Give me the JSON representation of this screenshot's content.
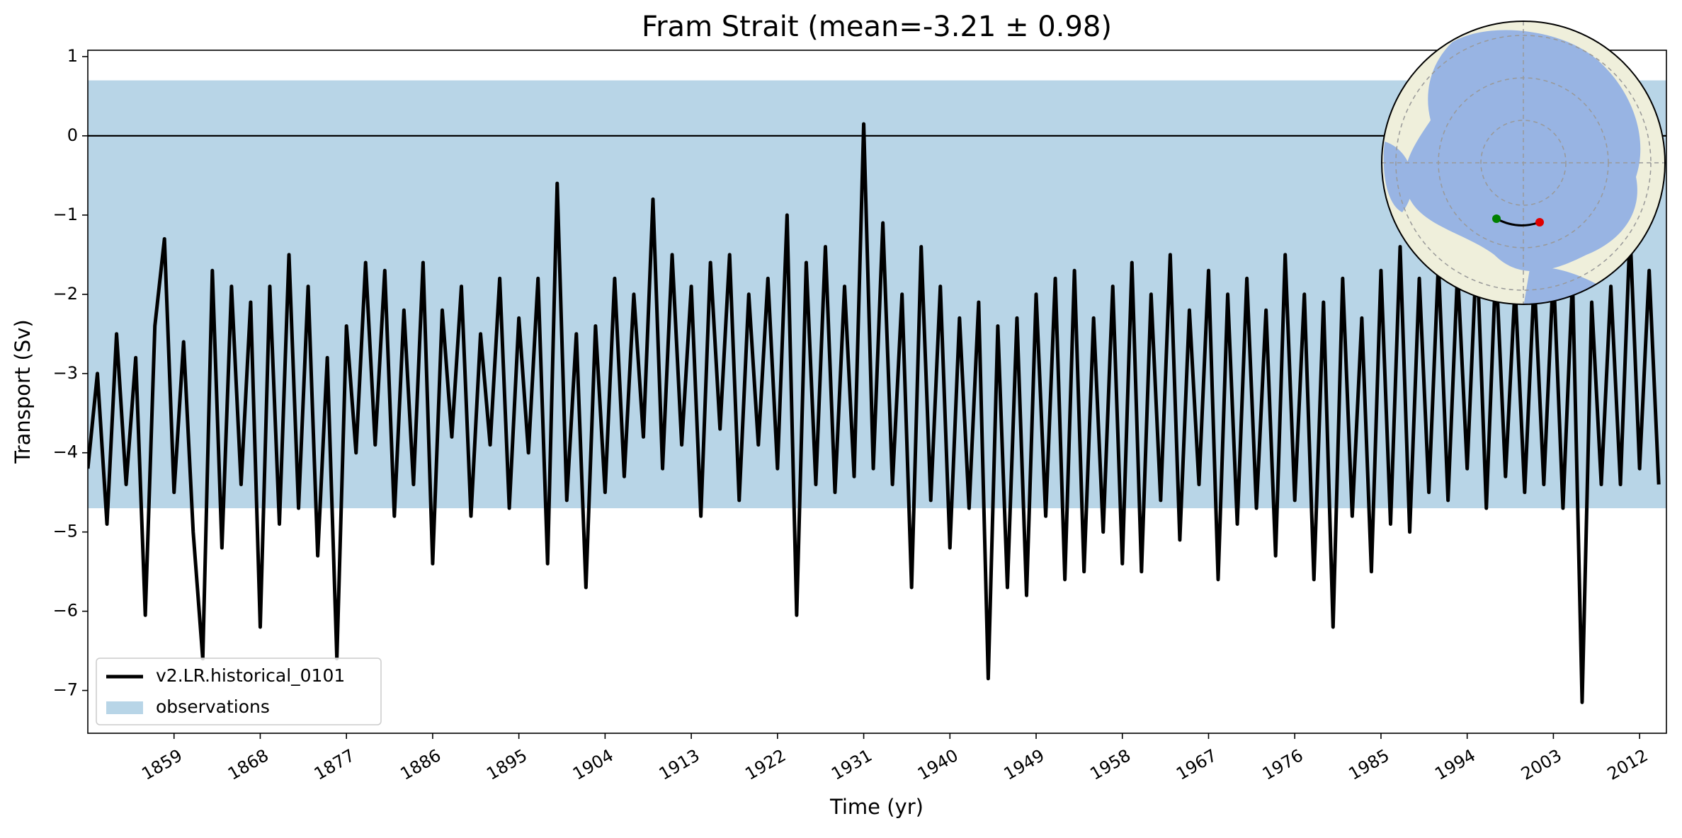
{
  "chart_data": {
    "type": "line",
    "title": "Fram Strait (mean=-3.21 ± 0.98)",
    "xlabel": "Time (yr)",
    "ylabel": "Transport (Sv)",
    "x": [
      1850,
      1851,
      1852,
      1853,
      1854,
      1855,
      1856,
      1857,
      1858,
      1859,
      1860,
      1861,
      1862,
      1863,
      1864,
      1865,
      1866,
      1867,
      1868,
      1869,
      1870,
      1871,
      1872,
      1873,
      1874,
      1875,
      1876,
      1877,
      1878,
      1879,
      1880,
      1881,
      1882,
      1883,
      1884,
      1885,
      1886,
      1887,
      1888,
      1889,
      1890,
      1891,
      1892,
      1893,
      1894,
      1895,
      1896,
      1897,
      1898,
      1899,
      1900,
      1901,
      1902,
      1903,
      1904,
      1905,
      1906,
      1907,
      1908,
      1909,
      1910,
      1911,
      1912,
      1913,
      1914,
      1915,
      1916,
      1917,
      1918,
      1919,
      1920,
      1921,
      1922,
      1923,
      1924,
      1925,
      1926,
      1927,
      1928,
      1929,
      1930,
      1931,
      1932,
      1933,
      1934,
      1935,
      1936,
      1937,
      1938,
      1939,
      1940,
      1941,
      1942,
      1943,
      1944,
      1945,
      1946,
      1947,
      1948,
      1949,
      1950,
      1951,
      1952,
      1953,
      1954,
      1955,
      1956,
      1957,
      1958,
      1959,
      1960,
      1961,
      1962,
      1963,
      1964,
      1965,
      1966,
      1967,
      1968,
      1969,
      1970,
      1971,
      1972,
      1973,
      1974,
      1975,
      1976,
      1977,
      1978,
      1979,
      1980,
      1981,
      1982,
      1983,
      1984,
      1985,
      1986,
      1987,
      1988,
      1989,
      1990,
      1991,
      1992,
      1993,
      1994,
      1995,
      1996,
      1997,
      1998,
      1999,
      2000,
      2001,
      2002,
      2003,
      2004,
      2005,
      2006,
      2007,
      2008,
      2009,
      2010,
      2011,
      2012,
      2013,
      2014
    ],
    "series": [
      {
        "name": "v2.LR.historical_0101",
        "color": "#000000",
        "values": [
          -4.2,
          -3.0,
          -4.9,
          -2.5,
          -4.4,
          -2.8,
          -6.05,
          -2.4,
          -1.3,
          -4.5,
          -2.6,
          -5.0,
          -6.6,
          -1.7,
          -5.2,
          -1.9,
          -4.4,
          -2.1,
          -6.2,
          -1.9,
          -4.9,
          -1.5,
          -4.7,
          -1.9,
          -5.3,
          -2.8,
          -6.6,
          -2.4,
          -4.0,
          -1.6,
          -3.9,
          -1.7,
          -4.8,
          -2.2,
          -4.4,
          -1.6,
          -5.4,
          -2.2,
          -3.8,
          -1.9,
          -4.8,
          -2.5,
          -3.9,
          -1.8,
          -4.7,
          -2.3,
          -4.0,
          -1.8,
          -5.4,
          -0.6,
          -4.6,
          -2.5,
          -5.7,
          -2.4,
          -4.5,
          -1.8,
          -4.3,
          -2.0,
          -3.8,
          -0.8,
          -4.2,
          -1.5,
          -3.9,
          -1.9,
          -4.8,
          -1.6,
          -3.7,
          -1.5,
          -4.6,
          -2.0,
          -3.9,
          -1.8,
          -4.2,
          -1.0,
          -6.05,
          -1.6,
          -4.4,
          -1.4,
          -4.5,
          -1.9,
          -4.3,
          0.15,
          -4.2,
          -1.1,
          -4.4,
          -2.0,
          -5.7,
          -1.4,
          -4.6,
          -1.9,
          -5.2,
          -2.3,
          -4.7,
          -2.1,
          -6.85,
          -2.4,
          -5.7,
          -2.3,
          -5.8,
          -2.0,
          -4.8,
          -1.8,
          -5.6,
          -1.7,
          -5.5,
          -2.3,
          -5.0,
          -1.9,
          -5.4,
          -1.6,
          -5.5,
          -2.0,
          -4.6,
          -1.5,
          -5.1,
          -2.2,
          -4.4,
          -1.7,
          -5.6,
          -2.0,
          -4.9,
          -1.8,
          -4.7,
          -2.2,
          -5.3,
          -1.5,
          -4.6,
          -2.0,
          -5.6,
          -2.1,
          -6.2,
          -1.8,
          -4.8,
          -2.3,
          -5.5,
          -1.7,
          -4.9,
          -1.4,
          -5.0,
          -1.8,
          -4.5,
          -1.6,
          -4.6,
          -1.7,
          -4.2,
          -1.4,
          -4.7,
          -1.6,
          -4.3,
          -1.9,
          -4.5,
          -1.8,
          -4.4,
          -1.7,
          -4.7,
          -1.8,
          -7.15,
          -2.1,
          -4.4,
          -1.9,
          -4.4,
          -1.2,
          -4.2,
          -1.7,
          -4.4
        ]
      }
    ],
    "band": {
      "name": "observations",
      "color": "#b8d5e7",
      "range": [
        -4.7,
        0.7
      ]
    },
    "hline": 0,
    "xlim": [
      1850,
      2014.8
    ],
    "xticks": [
      1859,
      1868,
      1877,
      1886,
      1895,
      1904,
      1913,
      1922,
      1931,
      1940,
      1949,
      1958,
      1967,
      1976,
      1985,
      1994,
      2003,
      2012
    ],
    "ylim": [
      -7.54,
      1.08
    ],
    "yticks": [
      1,
      0,
      {
        "value": -1,
        "label": "−1"
      },
      {
        "value": -2,
        "label": "−2"
      },
      {
        "value": -3,
        "label": "−3"
      },
      {
        "value": -4,
        "label": "−4"
      },
      {
        "value": -5,
        "label": "−5"
      },
      {
        "value": -6,
        "label": "−6"
      },
      {
        "value": -7,
        "label": "−7"
      }
    ],
    "legend": "lower left"
  }
}
